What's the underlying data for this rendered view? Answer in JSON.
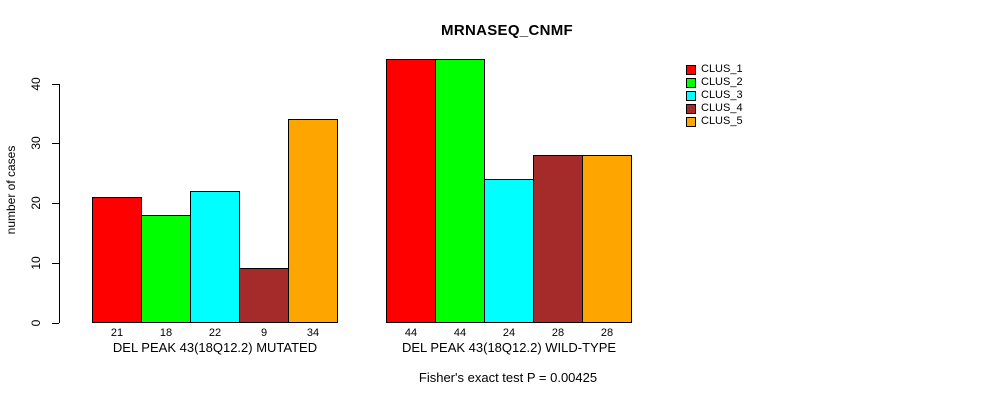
{
  "title": "MRNASEQ_CNMF",
  "y_axis": {
    "label": "number of cases",
    "ticks": [
      0,
      10,
      20,
      30,
      40
    ]
  },
  "footer": "Fisher's exact test P = 0.00425",
  "legend": {
    "items": [
      {
        "label": "CLUS_1",
        "color": "#ff0000"
      },
      {
        "label": "CLUS_2",
        "color": "#00ff00"
      },
      {
        "label": "CLUS_3",
        "color": "#00ffff"
      },
      {
        "label": "CLUS_4",
        "color": "#a52a2a"
      },
      {
        "label": "CLUS_5",
        "color": "#ffa500"
      }
    ]
  },
  "chart_data": {
    "type": "bar",
    "title": "MRNASEQ_CNMF",
    "xlabel": "",
    "ylabel": "number of cases",
    "ylim": [
      0,
      44
    ],
    "yticks": [
      0,
      10,
      20,
      30,
      40
    ],
    "grid": false,
    "legend_position": "right-outside-top",
    "annotation": "Fisher's exact test P = 0.00425",
    "bar_value_labels_shown": true,
    "categories": [
      "DEL PEAK 43(18Q12.2) MUTATED",
      "DEL PEAK 43(18Q12.2) WILD-TYPE"
    ],
    "series": [
      {
        "name": "CLUS_1",
        "color": "#ff0000",
        "values": [
          21,
          44
        ]
      },
      {
        "name": "CLUS_2",
        "color": "#00ff00",
        "values": [
          18,
          44
        ]
      },
      {
        "name": "CLUS_3",
        "color": "#00ffff",
        "values": [
          22,
          24
        ]
      },
      {
        "name": "CLUS_4",
        "color": "#a52a2a",
        "values": [
          9,
          28
        ]
      },
      {
        "name": "CLUS_5",
        "color": "#ffa500",
        "values": [
          34,
          28
        ]
      }
    ]
  }
}
